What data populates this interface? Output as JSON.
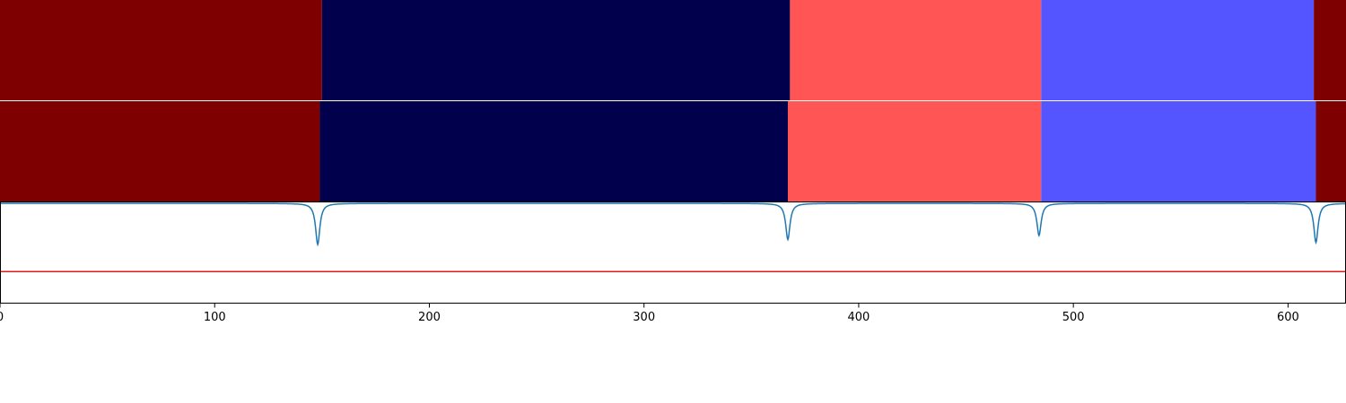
{
  "chart_data": [
    {
      "type": "heatmap",
      "panel": "top-segmentation",
      "xlim": [
        0,
        627
      ],
      "segments": [
        {
          "start": 0,
          "end": 150,
          "color": "#7f0000"
        },
        {
          "start": 150,
          "end": 368,
          "color": "#00004c"
        },
        {
          "start": 368,
          "end": 485,
          "color": "#ff5555"
        },
        {
          "start": 485,
          "end": 612,
          "color": "#5555ff"
        },
        {
          "start": 612,
          "end": 627,
          "color": "#7f0000"
        }
      ]
    },
    {
      "type": "heatmap",
      "panel": "bottom-segmentation",
      "xlim": [
        0,
        627
      ],
      "segments": [
        {
          "start": 0,
          "end": 149,
          "color": "#7f0000"
        },
        {
          "start": 149,
          "end": 367,
          "color": "#00004c"
        },
        {
          "start": 367,
          "end": 485,
          "color": "#ff5555"
        },
        {
          "start": 485,
          "end": 613,
          "color": "#5555ff"
        },
        {
          "start": 613,
          "end": 627,
          "color": "#7f0000"
        }
      ]
    },
    {
      "type": "line",
      "panel": "signal",
      "xlim": [
        0,
        627
      ],
      "ylim": [
        0,
        1
      ],
      "baseline": 0.99,
      "dips": [
        {
          "x": 148,
          "min": 0.58
        },
        {
          "x": 367,
          "min": 0.63
        },
        {
          "x": 484,
          "min": 0.67
        },
        {
          "x": 613,
          "min": 0.6
        }
      ],
      "dip_width": 1.2,
      "line_color": "#1f77b4",
      "threshold": 0.31,
      "threshold_color": "#e31a1c",
      "xticks": [
        0,
        100,
        200,
        300,
        400,
        500,
        600
      ],
      "xtick_labels": [
        "0",
        "100",
        "200",
        "300",
        "400",
        "500",
        "600"
      ],
      "grid": false
    }
  ]
}
